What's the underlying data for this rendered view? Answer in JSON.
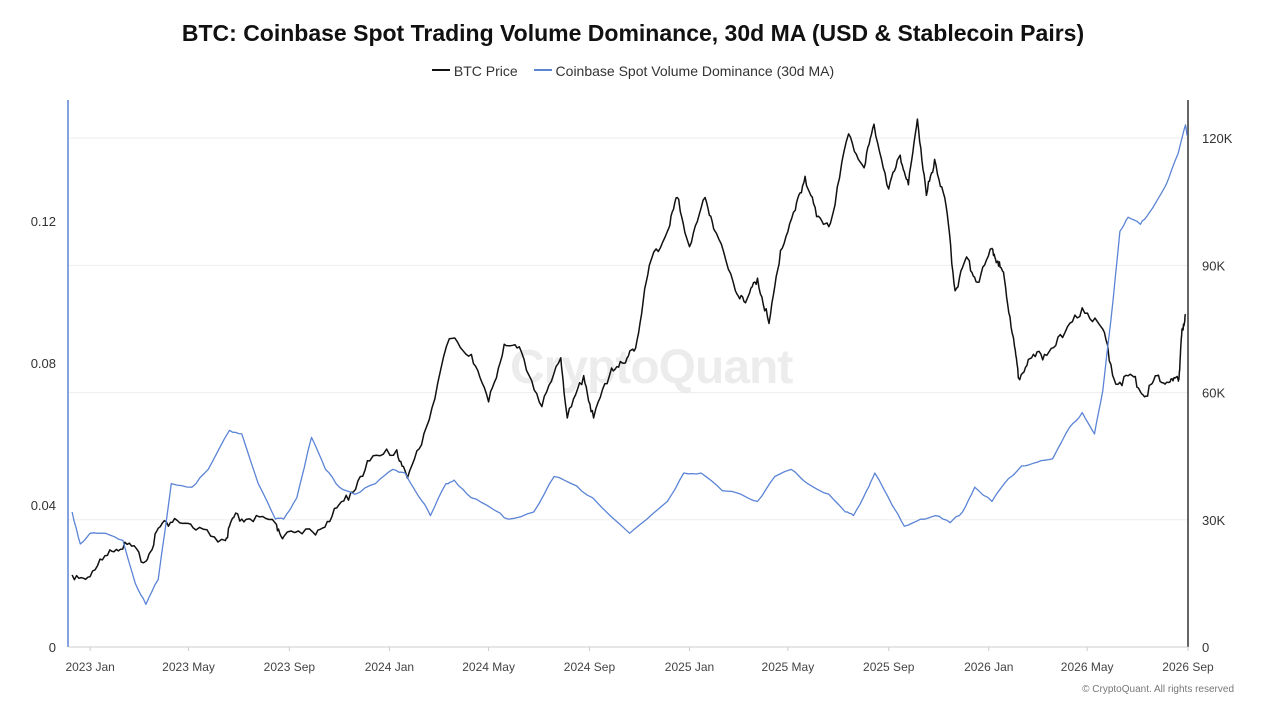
{
  "chart_data": {
    "type": "line",
    "title": "BTC: Coinbase Spot Trading Volume Dominance, 30d MA (USD & Stablecoin Pairs)",
    "legend_position": "top-center",
    "grid": "horizontal",
    "colors": {
      "btc_price": "#111111",
      "dominance": "#5b84d6",
      "left_axis": "#5b84d6",
      "right_axis": "#333333"
    },
    "x": {
      "range": [
        "2022-12-05",
        "2026-09-01"
      ],
      "tick_labels": [
        "2023 Jan",
        "2023 May",
        "2023 Sep",
        "2024 Jan",
        "2024 May",
        "2024 Sep",
        "2025 Jan",
        "2025 May",
        "2025 Sep",
        "2026 Jan",
        "2026 May",
        "2026 Sep"
      ],
      "tick_dates": [
        "2023-01-01",
        "2023-05-01",
        "2023-09-01",
        "2024-01-01",
        "2024-05-01",
        "2024-09-01",
        "2025-01-01",
        "2025-05-01",
        "2025-09-01",
        "2026-01-01",
        "2026-05-01",
        "2026-09-01"
      ]
    },
    "y_left": {
      "range": [
        0,
        0.154
      ],
      "tick_values": [
        0,
        0.04,
        0.08,
        0.12
      ],
      "tick_labels": [
        "0",
        "0.04",
        "0.08",
        "0.12"
      ]
    },
    "y_right": {
      "range": [
        0,
        129000
      ],
      "tick_values": [
        0,
        30000,
        60000,
        90000,
        120000
      ],
      "tick_labels": [
        "0",
        "30K",
        "60K",
        "90K",
        "120K"
      ]
    },
    "series": [
      {
        "name": "BTC Price",
        "axis": "right",
        "color": "#111111",
        "points": [
          [
            "2022-12-10",
            17000
          ],
          [
            "2023-01-01",
            16600
          ],
          [
            "2023-01-25",
            22900
          ],
          [
            "2023-02-15",
            24200
          ],
          [
            "2023-03-10",
            20200
          ],
          [
            "2023-03-25",
            28000
          ],
          [
            "2023-04-14",
            30300
          ],
          [
            "2023-05-10",
            27600
          ],
          [
            "2023-06-15",
            25100
          ],
          [
            "2023-06-25",
            30500
          ],
          [
            "2023-07-15",
            30200
          ],
          [
            "2023-08-15",
            29200
          ],
          [
            "2023-08-25",
            26000
          ],
          [
            "2023-09-30",
            27000
          ],
          [
            "2023-10-23",
            30800
          ],
          [
            "2023-11-15",
            36500
          ],
          [
            "2023-12-08",
            43900
          ],
          [
            "2024-01-10",
            46500
          ],
          [
            "2024-01-23",
            39800
          ],
          [
            "2024-02-15",
            51800
          ],
          [
            "2024-03-14",
            72700
          ],
          [
            "2024-04-10",
            69000
          ],
          [
            "2024-05-01",
            57800
          ],
          [
            "2024-05-20",
            71400
          ],
          [
            "2024-06-10",
            69600
          ],
          [
            "2024-07-05",
            56700
          ],
          [
            "2024-07-28",
            68200
          ],
          [
            "2024-08-05",
            54000
          ],
          [
            "2024-08-25",
            64000
          ],
          [
            "2024-09-06",
            54000
          ],
          [
            "2024-09-28",
            65800
          ],
          [
            "2024-10-15",
            67000
          ],
          [
            "2024-10-29",
            72300
          ],
          [
            "2024-11-13",
            90000
          ],
          [
            "2024-12-05",
            98000
          ],
          [
            "2024-12-17",
            106000
          ],
          [
            "2025-01-01",
            94400
          ],
          [
            "2025-01-20",
            106000
          ],
          [
            "2025-02-03",
            97500
          ],
          [
            "2025-02-26",
            84000
          ],
          [
            "2025-03-12",
            82000
          ],
          [
            "2025-03-25",
            87000
          ],
          [
            "2025-04-08",
            76300
          ],
          [
            "2025-04-22",
            93500
          ],
          [
            "2025-05-10",
            103000
          ],
          [
            "2025-05-22",
            111000
          ],
          [
            "2025-06-05",
            101500
          ],
          [
            "2025-06-22",
            100000
          ],
          [
            "2025-07-14",
            121000
          ],
          [
            "2025-08-02",
            113000
          ],
          [
            "2025-08-14",
            123300
          ],
          [
            "2025-09-01",
            108000
          ],
          [
            "2025-09-15",
            116000
          ],
          [
            "2025-09-25",
            109000
          ],
          [
            "2025-10-06",
            124500
          ],
          [
            "2025-10-17",
            106500
          ],
          [
            "2025-10-27",
            115000
          ],
          [
            "2025-11-10",
            104000
          ],
          [
            "2025-11-21",
            84000
          ],
          [
            "2025-12-05",
            92000
          ],
          [
            "2025-12-18",
            86000
          ],
          [
            "2026-01-05",
            94000
          ],
          [
            "2026-01-12",
            91000
          ],
          [
            "2026-01-20",
            87000
          ],
          [
            "2026-01-31",
            73000
          ],
          [
            "2026-02-06",
            63500
          ],
          [
            "2026-02-20",
            68000
          ],
          [
            "2026-03-10",
            69000
          ],
          [
            "2026-04-01",
            73000
          ],
          [
            "2026-04-25",
            80000
          ],
          [
            "2026-05-20",
            75000
          ],
          [
            "2026-06-05",
            62000
          ],
          [
            "2026-06-25",
            64000
          ],
          [
            "2026-07-10",
            59000
          ],
          [
            "2026-07-25",
            64000
          ],
          [
            "2026-08-10",
            62500
          ],
          [
            "2026-08-20",
            63000
          ],
          [
            "2026-08-22",
            66000
          ],
          [
            "2026-08-25",
            75000
          ],
          [
            "2026-08-29",
            78500
          ]
        ]
      },
      {
        "name": "Coinbase Spot Volume Dominance (30d MA)",
        "axis": "left",
        "color": "#5b84d6",
        "points": [
          [
            "2022-12-10",
            0.038
          ],
          [
            "2022-12-20",
            0.029
          ],
          [
            "2023-01-01",
            0.032
          ],
          [
            "2023-01-20",
            0.032
          ],
          [
            "2023-02-10",
            0.03
          ],
          [
            "2023-02-25",
            0.018
          ],
          [
            "2023-03-10",
            0.012
          ],
          [
            "2023-03-25",
            0.019
          ],
          [
            "2023-04-10",
            0.046
          ],
          [
            "2023-05-05",
            0.045
          ],
          [
            "2023-05-25",
            0.05
          ],
          [
            "2023-06-20",
            0.061
          ],
          [
            "2023-07-05",
            0.06
          ],
          [
            "2023-07-25",
            0.046
          ],
          [
            "2023-08-15",
            0.036
          ],
          [
            "2023-08-25",
            0.036
          ],
          [
            "2023-09-10",
            0.042
          ],
          [
            "2023-09-28",
            0.059
          ],
          [
            "2023-10-15",
            0.05
          ],
          [
            "2023-11-01",
            0.045
          ],
          [
            "2023-11-20",
            0.043
          ],
          [
            "2023-12-15",
            0.046
          ],
          [
            "2024-01-05",
            0.05
          ],
          [
            "2024-01-20",
            0.049
          ],
          [
            "2024-02-10",
            0.041
          ],
          [
            "2024-02-20",
            0.037
          ],
          [
            "2024-03-10",
            0.046
          ],
          [
            "2024-03-20",
            0.047
          ],
          [
            "2024-04-10",
            0.042
          ],
          [
            "2024-05-05",
            0.039
          ],
          [
            "2024-05-25",
            0.036
          ],
          [
            "2024-06-25",
            0.038
          ],
          [
            "2024-07-20",
            0.048
          ],
          [
            "2024-08-10",
            0.046
          ],
          [
            "2024-09-05",
            0.042
          ],
          [
            "2024-10-20",
            0.032
          ],
          [
            "2024-11-10",
            0.036
          ],
          [
            "2024-12-05",
            0.041
          ],
          [
            "2024-12-25",
            0.049
          ],
          [
            "2025-01-15",
            0.049
          ],
          [
            "2025-02-10",
            0.044
          ],
          [
            "2025-03-05",
            0.043
          ],
          [
            "2025-03-25",
            0.041
          ],
          [
            "2025-04-15",
            0.048
          ],
          [
            "2025-05-05",
            0.05
          ],
          [
            "2025-05-25",
            0.046
          ],
          [
            "2025-06-20",
            0.043
          ],
          [
            "2025-07-10",
            0.038
          ],
          [
            "2025-07-20",
            0.037
          ],
          [
            "2025-08-05",
            0.044
          ],
          [
            "2025-08-15",
            0.049
          ],
          [
            "2025-09-05",
            0.04
          ],
          [
            "2025-09-20",
            0.034
          ],
          [
            "2025-10-10",
            0.036
          ],
          [
            "2025-10-28",
            0.037
          ],
          [
            "2025-11-15",
            0.035
          ],
          [
            "2025-11-30",
            0.038
          ],
          [
            "2025-12-15",
            0.045
          ],
          [
            "2026-01-05",
            0.041
          ],
          [
            "2026-01-20",
            0.046
          ],
          [
            "2026-02-10",
            0.051
          ],
          [
            "2026-03-01",
            0.052
          ],
          [
            "2026-03-20",
            0.053
          ],
          [
            "2026-04-10",
            0.062
          ],
          [
            "2026-04-25",
            0.066
          ],
          [
            "2026-05-10",
            0.06
          ],
          [
            "2026-05-20",
            0.072
          ],
          [
            "2026-05-30",
            0.092
          ],
          [
            "2026-06-10",
            0.117
          ],
          [
            "2026-06-20",
            0.121
          ],
          [
            "2026-07-05",
            0.119
          ],
          [
            "2026-07-15",
            0.122
          ],
          [
            "2026-08-05",
            0.13
          ],
          [
            "2026-08-20",
            0.139
          ],
          [
            "2026-08-29",
            0.147
          ],
          [
            "2026-08-31",
            0.144
          ]
        ]
      }
    ]
  },
  "watermark": "CryptoQuant",
  "copyright": "© CryptoQuant. All rights reserved"
}
